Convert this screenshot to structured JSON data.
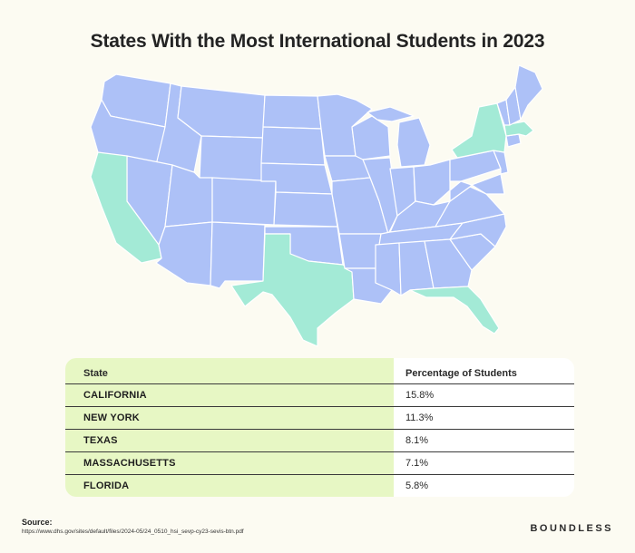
{
  "title": "States With the Most International Students in 2023",
  "map": {
    "highlight_color": "#a3ead6",
    "base_color": "#adc1f7",
    "border_color": "#ffffff",
    "highlighted_states": [
      "California",
      "New York",
      "Texas",
      "Massachusetts",
      "Florida"
    ]
  },
  "table": {
    "headers": {
      "state": "State",
      "percentage": "Percentage of Students"
    },
    "rows": [
      {
        "state": "CALIFORNIA",
        "percentage": "15.8%"
      },
      {
        "state": "NEW YORK",
        "percentage": "11.3%"
      },
      {
        "state": "TEXAS",
        "percentage": "8.1%"
      },
      {
        "state": "MASSACHUSETTS",
        "percentage": "7.1%"
      },
      {
        "state": "FLORIDA",
        "percentage": "5.8%"
      }
    ],
    "left_color": "#e7f7c4"
  },
  "source": {
    "label": "Source:",
    "url": "https://www.dhs.gov/sites/default/files/2024-05/24_0510_hsi_sevp-cy23-sevis-btn.pdf"
  },
  "brand": "BOUNDLESS"
}
